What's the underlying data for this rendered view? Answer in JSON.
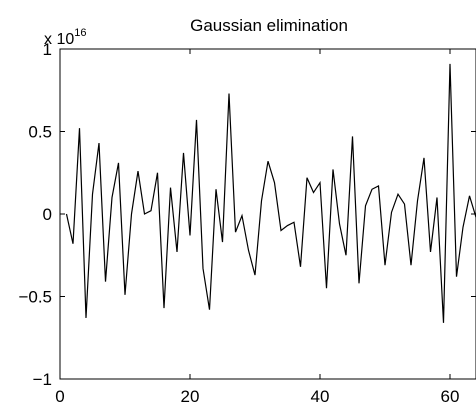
{
  "chart_data": {
    "type": "line",
    "title": "Gaussian elimination",
    "xlabel": "",
    "ylabel": "",
    "y_multiplier": {
      "base": "x 10",
      "exponent": "16"
    },
    "xlim": [
      0,
      64
    ],
    "ylim": [
      -1,
      1
    ],
    "x_ticks": [
      0,
      20,
      40,
      60
    ],
    "y_ticks": [
      -1,
      -0.5,
      0,
      0.5,
      1
    ],
    "x_tick_labels": [
      "0",
      "20",
      "40",
      "60"
    ],
    "y_tick_labels": [
      "−1",
      "−0.5",
      "0",
      "0.5",
      "1"
    ],
    "grid": false,
    "legend": "none",
    "line_color": "#000000",
    "series": [
      {
        "x": [
          1,
          2,
          3,
          4,
          5,
          6,
          7,
          8,
          9,
          10,
          11,
          12,
          13,
          14,
          15,
          16,
          17,
          18,
          19,
          20,
          21,
          22,
          23,
          24,
          25,
          26,
          27,
          28,
          29,
          30,
          31,
          32,
          33,
          34,
          35,
          36,
          37,
          38,
          39,
          40,
          41,
          42,
          43,
          44,
          45,
          46,
          47,
          48,
          49,
          50,
          51,
          52,
          53,
          54,
          55,
          56,
          57,
          58,
          59,
          60,
          61,
          62,
          63,
          64
        ],
        "values": [
          0.0,
          -0.18,
          0.52,
          -0.63,
          0.12,
          0.43,
          -0.41,
          0.1,
          0.31,
          -0.49,
          0.0,
          0.26,
          0.0,
          0.02,
          0.25,
          -0.57,
          0.16,
          -0.23,
          0.37,
          -0.13,
          0.57,
          -0.33,
          -0.58,
          0.15,
          -0.17,
          0.73,
          -0.11,
          -0.01,
          -0.22,
          -0.37,
          0.08,
          0.32,
          0.19,
          -0.1,
          -0.07,
          -0.05,
          -0.32,
          0.22,
          0.13,
          0.19,
          -0.45,
          0.27,
          -0.06,
          -0.25,
          0.47,
          -0.42,
          0.05,
          0.15,
          0.17,
          -0.31,
          0.01,
          0.12,
          0.06,
          -0.31,
          0.08,
          0.34,
          -0.23,
          0.1,
          -0.66,
          0.91,
          -0.38,
          -0.08,
          0.11,
          -0.02
        ]
      }
    ]
  }
}
